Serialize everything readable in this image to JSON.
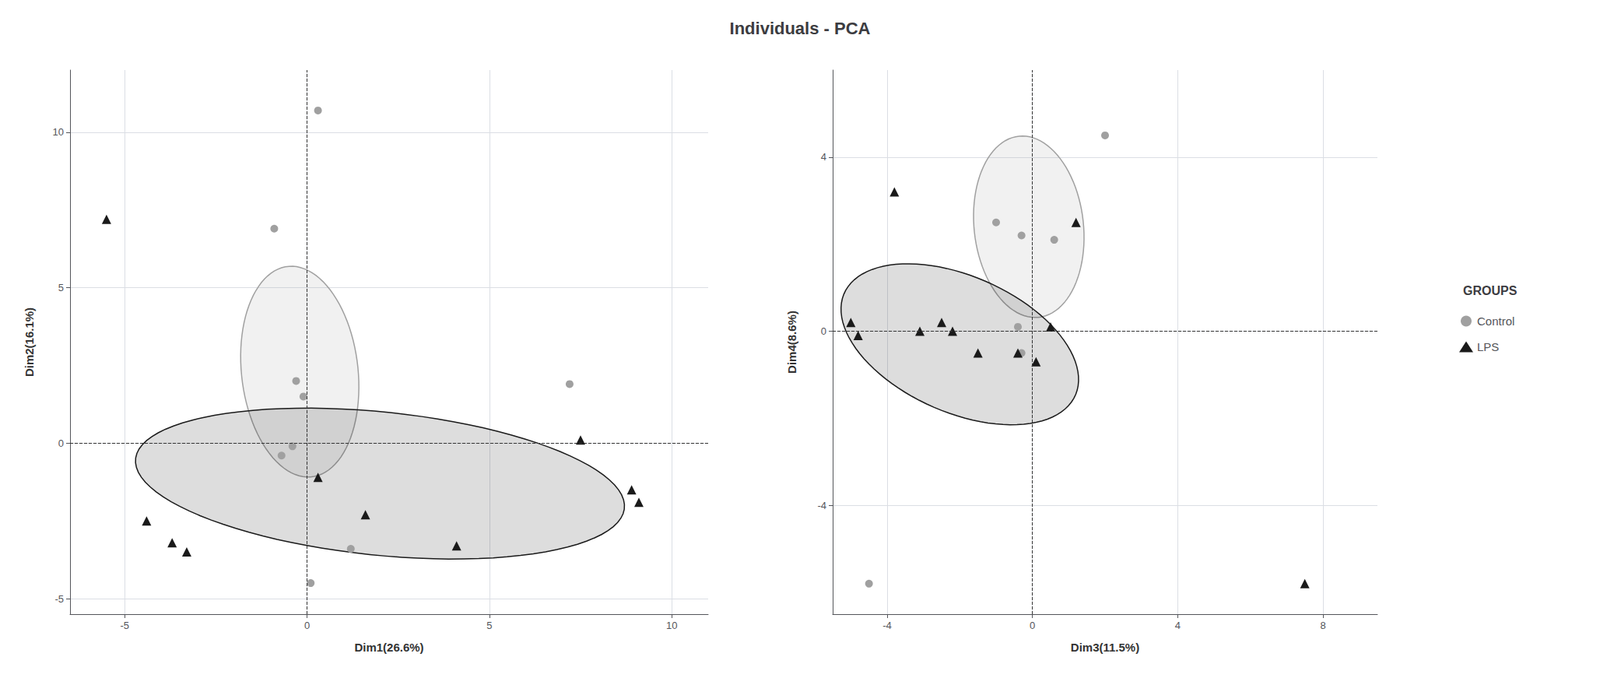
{
  "title": "Individuals - PCA",
  "legend_title": "GROUPS",
  "chart_data": [
    {
      "type": "scatter",
      "xlabel": "Dim1(26.6%)",
      "ylabel": "Dim2(16.1%)",
      "xlim": [
        -6.5,
        11.0
      ],
      "ylim": [
        -5.5,
        12.0
      ],
      "xticks": [
        -5,
        0,
        5,
        10
      ],
      "yticks": [
        -5,
        0,
        5,
        10
      ],
      "grid": true,
      "legend": "right",
      "hlines": [
        0
      ],
      "vlines": [
        0
      ],
      "series": [
        {
          "name": "Control",
          "color": "#a0a0a0",
          "marker": "circle",
          "values": [
            [
              0.3,
              10.7
            ],
            [
              -0.9,
              6.9
            ],
            [
              -0.3,
              2.0
            ],
            [
              -0.1,
              1.5
            ],
            [
              -0.4,
              -0.1
            ],
            [
              -0.7,
              -0.4
            ],
            [
              0.1,
              -4.5
            ],
            [
              7.2,
              1.9
            ],
            [
              1.2,
              -3.4
            ]
          ],
          "ellipse": {
            "center": [
              -0.2,
              2.3
            ],
            "width": 3.2,
            "height": 6.8,
            "angle": 5
          }
        },
        {
          "name": "LPS",
          "color": "#1a1a1a",
          "marker": "triangle",
          "values": [
            [
              -5.5,
              7.2
            ],
            [
              -4.4,
              -2.5
            ],
            [
              -3.7,
              -3.2
            ],
            [
              -3.3,
              -3.5
            ],
            [
              0.3,
              -1.1
            ],
            [
              1.6,
              -2.3
            ],
            [
              4.1,
              -3.3
            ],
            [
              7.5,
              0.1
            ],
            [
              8.9,
              -1.5
            ],
            [
              9.1,
              -1.9
            ]
          ],
          "ellipse": {
            "center": [
              2.0,
              -1.3
            ],
            "width": 13.5,
            "height": 4.6,
            "angle": -7
          }
        }
      ]
    },
    {
      "type": "scatter",
      "xlabel": "Dim3(11.5%)",
      "ylabel": "Dim4(8.6%)",
      "xlim": [
        -5.5,
        9.5
      ],
      "ylim": [
        -6.5,
        6.0
      ],
      "xticks": [
        -4,
        0,
        4,
        8
      ],
      "yticks": [
        -4,
        0,
        4
      ],
      "grid": true,
      "legend": "right",
      "hlines": [
        0
      ],
      "vlines": [
        0
      ],
      "series": [
        {
          "name": "Control",
          "color": "#a0a0a0",
          "marker": "circle",
          "values": [
            [
              2.0,
              4.5
            ],
            [
              -1.0,
              2.5
            ],
            [
              -0.3,
              2.2
            ],
            [
              0.6,
              2.1
            ],
            [
              -0.4,
              0.1
            ],
            [
              -0.3,
              -0.5
            ],
            [
              -4.5,
              -5.8
            ]
          ],
          "ellipse": {
            "center": [
              -0.1,
              2.4
            ],
            "width": 3.0,
            "height": 4.2,
            "angle": 10
          }
        },
        {
          "name": "LPS",
          "color": "#1a1a1a",
          "marker": "triangle",
          "values": [
            [
              -5.0,
              0.2
            ],
            [
              -4.8,
              -0.1
            ],
            [
              -3.8,
              3.2
            ],
            [
              -3.1,
              0.0
            ],
            [
              -2.5,
              0.2
            ],
            [
              -2.2,
              0.0
            ],
            [
              -1.5,
              -0.5
            ],
            [
              -0.4,
              -0.5
            ],
            [
              0.1,
              -0.7
            ],
            [
              0.5,
              0.1
            ],
            [
              1.2,
              2.5
            ],
            [
              7.5,
              -5.8
            ]
          ],
          "ellipse": {
            "center": [
              -2.0,
              -0.3
            ],
            "width": 6.8,
            "height": 3.2,
            "angle": -18
          }
        }
      ]
    }
  ]
}
